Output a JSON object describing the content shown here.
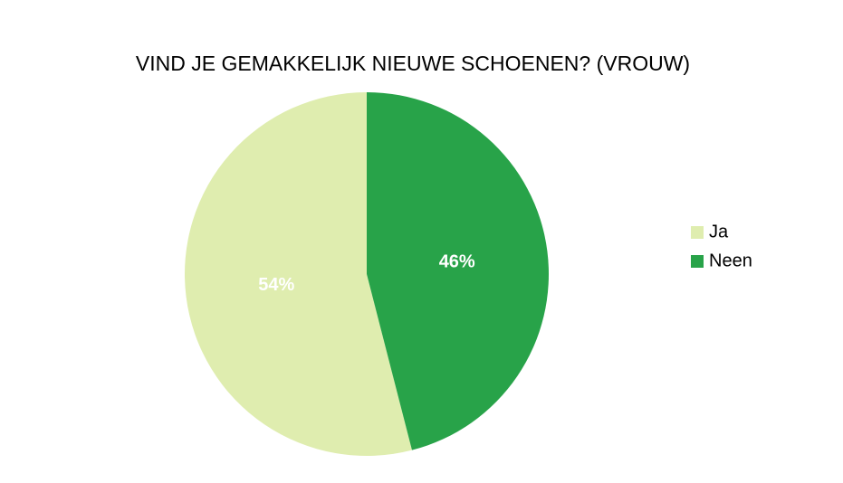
{
  "chart_data": {
    "type": "pie",
    "title": "VIND JE GEMAKKELIJK NIEUWE SCHOENEN? (VROUW)",
    "categories": [
      "Ja",
      "Neen"
    ],
    "values": [
      54,
      46
    ],
    "value_labels": [
      "54%",
      "46%"
    ],
    "colors": [
      "#dfedaf",
      "#28a349"
    ],
    "legend": "right"
  }
}
